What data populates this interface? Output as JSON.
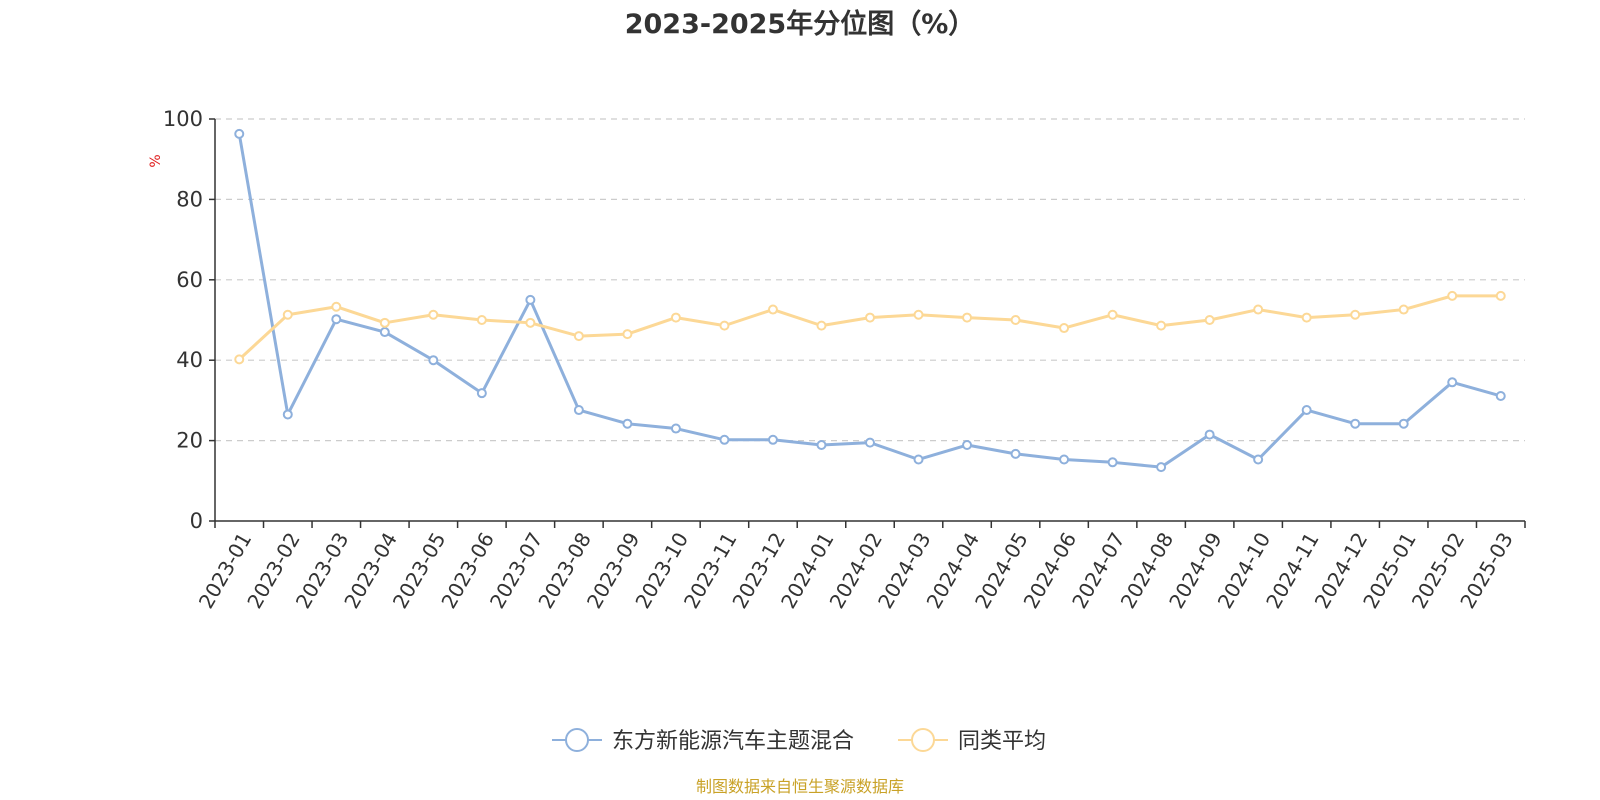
{
  "chart_data": {
    "type": "line",
    "title": "2023-2025年分位图（%）",
    "ylabel": "%",
    "ylim": [
      0,
      100
    ],
    "yticks": [
      0,
      20,
      40,
      60,
      80,
      100
    ],
    "grid": "horizontal-dashed",
    "legend_position": "bottom-center",
    "categories": [
      "2023-01",
      "2023-02",
      "2023-03",
      "2023-04",
      "2023-05",
      "2023-06",
      "2023-07",
      "2023-08",
      "2023-09",
      "2023-10",
      "2023-11",
      "2023-12",
      "2024-01",
      "2024-02",
      "2024-03",
      "2024-04",
      "2024-05",
      "2024-06",
      "2024-07",
      "2024-08",
      "2024-09",
      "2024-10",
      "2024-11",
      "2024-12",
      "2025-01",
      "2025-02",
      "2025-03"
    ],
    "series": [
      {
        "name": "东方新能源汽车主题混合",
        "color": "#8eb0dc",
        "values": [
          96.3,
          26.5,
          50.2,
          47.0,
          40.0,
          31.8,
          55.0,
          27.6,
          24.2,
          23.0,
          20.2,
          20.2,
          18.9,
          19.5,
          15.3,
          18.9,
          16.7,
          15.3,
          14.6,
          13.4,
          21.5,
          15.3,
          27.6,
          24.2,
          24.2,
          34.5,
          31.1
        ]
      },
      {
        "name": "同类平均",
        "color": "#fcd896",
        "values": [
          40.2,
          51.3,
          53.3,
          49.3,
          51.3,
          50.0,
          49.3,
          46.0,
          46.5,
          50.6,
          48.6,
          52.6,
          48.6,
          50.6,
          51.3,
          50.6,
          50.0,
          48.0,
          51.3,
          48.6,
          50.0,
          52.6,
          50.6,
          51.3,
          52.6,
          56.0,
          56.0
        ]
      }
    ]
  },
  "colors": {
    "axis": "#333333",
    "grid": "#cccccc",
    "unit_label": "#e02020",
    "source_text": "#c9a227"
  },
  "footer": {
    "source": "制图数据来自恒生聚源数据库"
  }
}
